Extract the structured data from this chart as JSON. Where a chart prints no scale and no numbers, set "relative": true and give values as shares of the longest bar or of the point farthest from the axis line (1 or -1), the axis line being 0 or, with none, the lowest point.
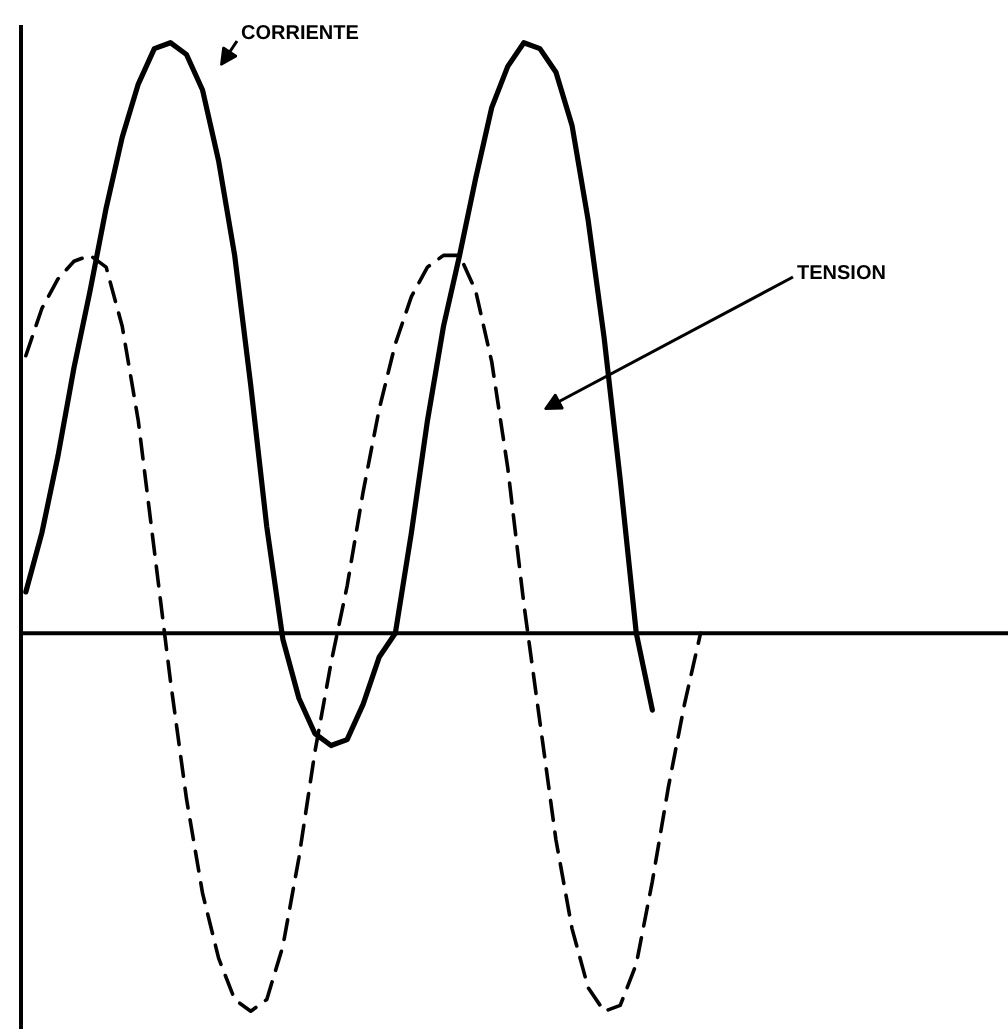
{
  "chart_data": {
    "type": "line",
    "relative": true,
    "grid": false,
    "marker": "none",
    "categories": [
      null,
      null,
      null,
      null,
      null,
      null,
      null,
      null,
      null,
      null,
      null,
      null,
      null,
      null,
      null,
      null,
      null,
      null,
      null,
      null,
      null,
      null,
      null,
      null,
      null,
      null,
      null,
      null,
      null,
      null,
      null,
      null,
      null,
      null,
      null,
      null,
      null,
      null,
      null,
      null,
      null,
      null,
      null,
      null,
      null,
      null,
      null,
      null,
      null,
      null,
      null,
      null,
      null,
      null,
      null,
      null,
      null,
      null,
      null,
      null,
      null
    ],
    "series": [
      {
        "name": "CORRIENTE",
        "color": "#000000",
        "line_style": "solid",
        "values": [
          0.07,
          0.17,
          0.3,
          0.45,
          0.58,
          0.72,
          0.84,
          0.93,
          0.99,
          1.0,
          0.98,
          0.92,
          0.8,
          0.64,
          0.42,
          0.18,
          -0.01,
          -0.11,
          -0.17,
          -0.19,
          -0.18,
          -0.12,
          -0.04,
          0.0,
          0.17,
          0.36,
          0.52,
          0.64,
          0.77,
          0.89,
          0.96,
          1.0,
          0.99,
          0.95,
          0.86,
          0.7,
          0.5,
          0.26,
          0.0,
          -0.13,
          null,
          null,
          null,
          null,
          null,
          null,
          null,
          null,
          null,
          null,
          null,
          null,
          null,
          null,
          null,
          null,
          null,
          null,
          null,
          null,
          null
        ]
      },
      {
        "name": "TENSION",
        "color": "#000000",
        "line_style": "dashed",
        "values": [
          0.47,
          0.55,
          0.6,
          0.63,
          0.64,
          0.62,
          0.52,
          0.36,
          0.14,
          -0.08,
          -0.28,
          -0.44,
          -0.55,
          -0.62,
          -0.64,
          -0.62,
          -0.53,
          -0.38,
          -0.2,
          -0.05,
          0.08,
          0.24,
          0.38,
          0.49,
          0.57,
          0.62,
          0.64,
          0.64,
          0.58,
          0.46,
          0.28,
          0.05,
          -0.15,
          -0.35,
          -0.5,
          -0.6,
          -0.64,
          -0.63,
          -0.56,
          -0.42,
          -0.26,
          -0.12,
          0.0,
          null,
          null,
          null,
          null,
          null,
          null,
          null,
          null,
          null,
          null,
          null,
          null,
          null,
          null,
          null,
          null,
          null,
          null
        ]
      }
    ]
  }
}
